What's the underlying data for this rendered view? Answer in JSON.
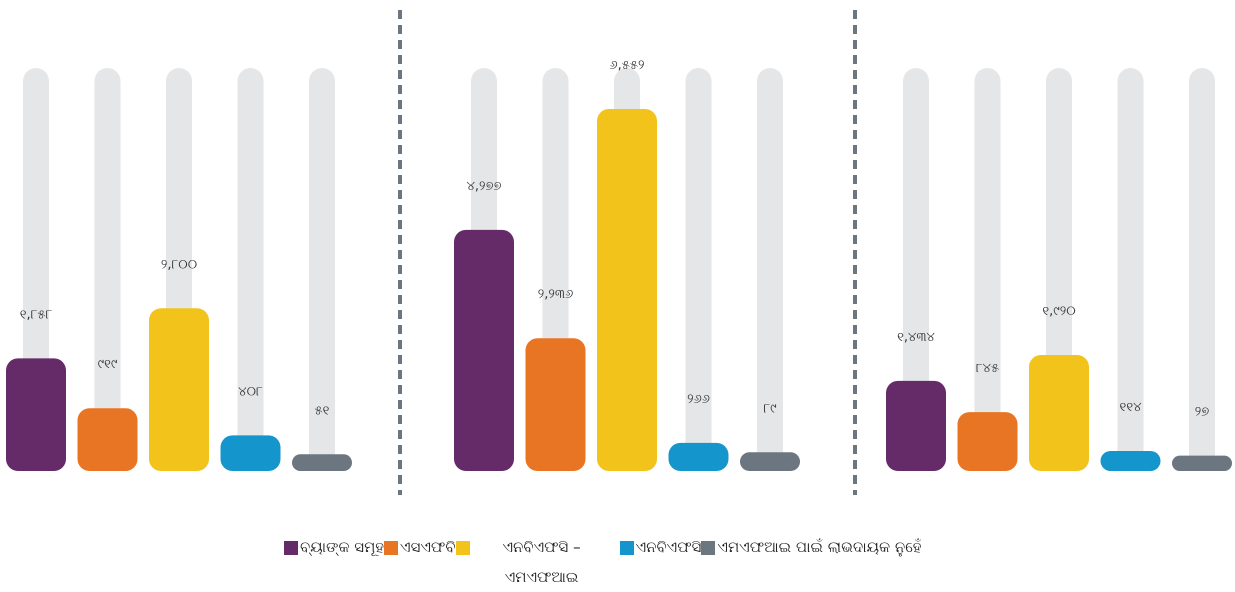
{
  "legend": [
    {
      "name": "ବ୍ୟାଙ୍କ ସମୂହ",
      "color": "#652b68"
    },
    {
      "name": "ଏସଏଫବି",
      "color": "#e87524"
    },
    {
      "name": "ଏନବିଏଫସି – ଏମଏଫଆଇ",
      "color": "#f2c31b"
    },
    {
      "name": "ଏନବିଏଫସି",
      "color": "#1496cc"
    },
    {
      "name": "ଏମଏଫଆଇ ପାଇଁ ଲାଭଦାୟକ ନୁହେଁ",
      "color": "#6b7680"
    }
  ],
  "chart_data": [
    {
      "type": "bar",
      "values": [
        1858,
        919,
        2800,
        408,
        51
      ],
      "value_labels": [
        "୧,୮୫୮",
        "୯୧୯",
        "୨,୮୦୦",
        "୪୦୮",
        "୫୧"
      ]
    },
    {
      "type": "bar",
      "values": [
        4277,
        2236,
        6552,
        266,
        89
      ],
      "value_labels": [
        "୪,୨୭୭",
        "୨,୨୩୬",
        "୬,୫୫୨",
        "୨୬୬",
        "୮୯"
      ]
    },
    {
      "type": "bar",
      "values": [
        1434,
        845,
        1920,
        114,
        27
      ],
      "value_labels": [
        "୧,୪୩୪",
        "୮୪୫",
        "୧,୯୨୦",
        "୧୧୪",
        "୨୭"
      ]
    }
  ]
}
